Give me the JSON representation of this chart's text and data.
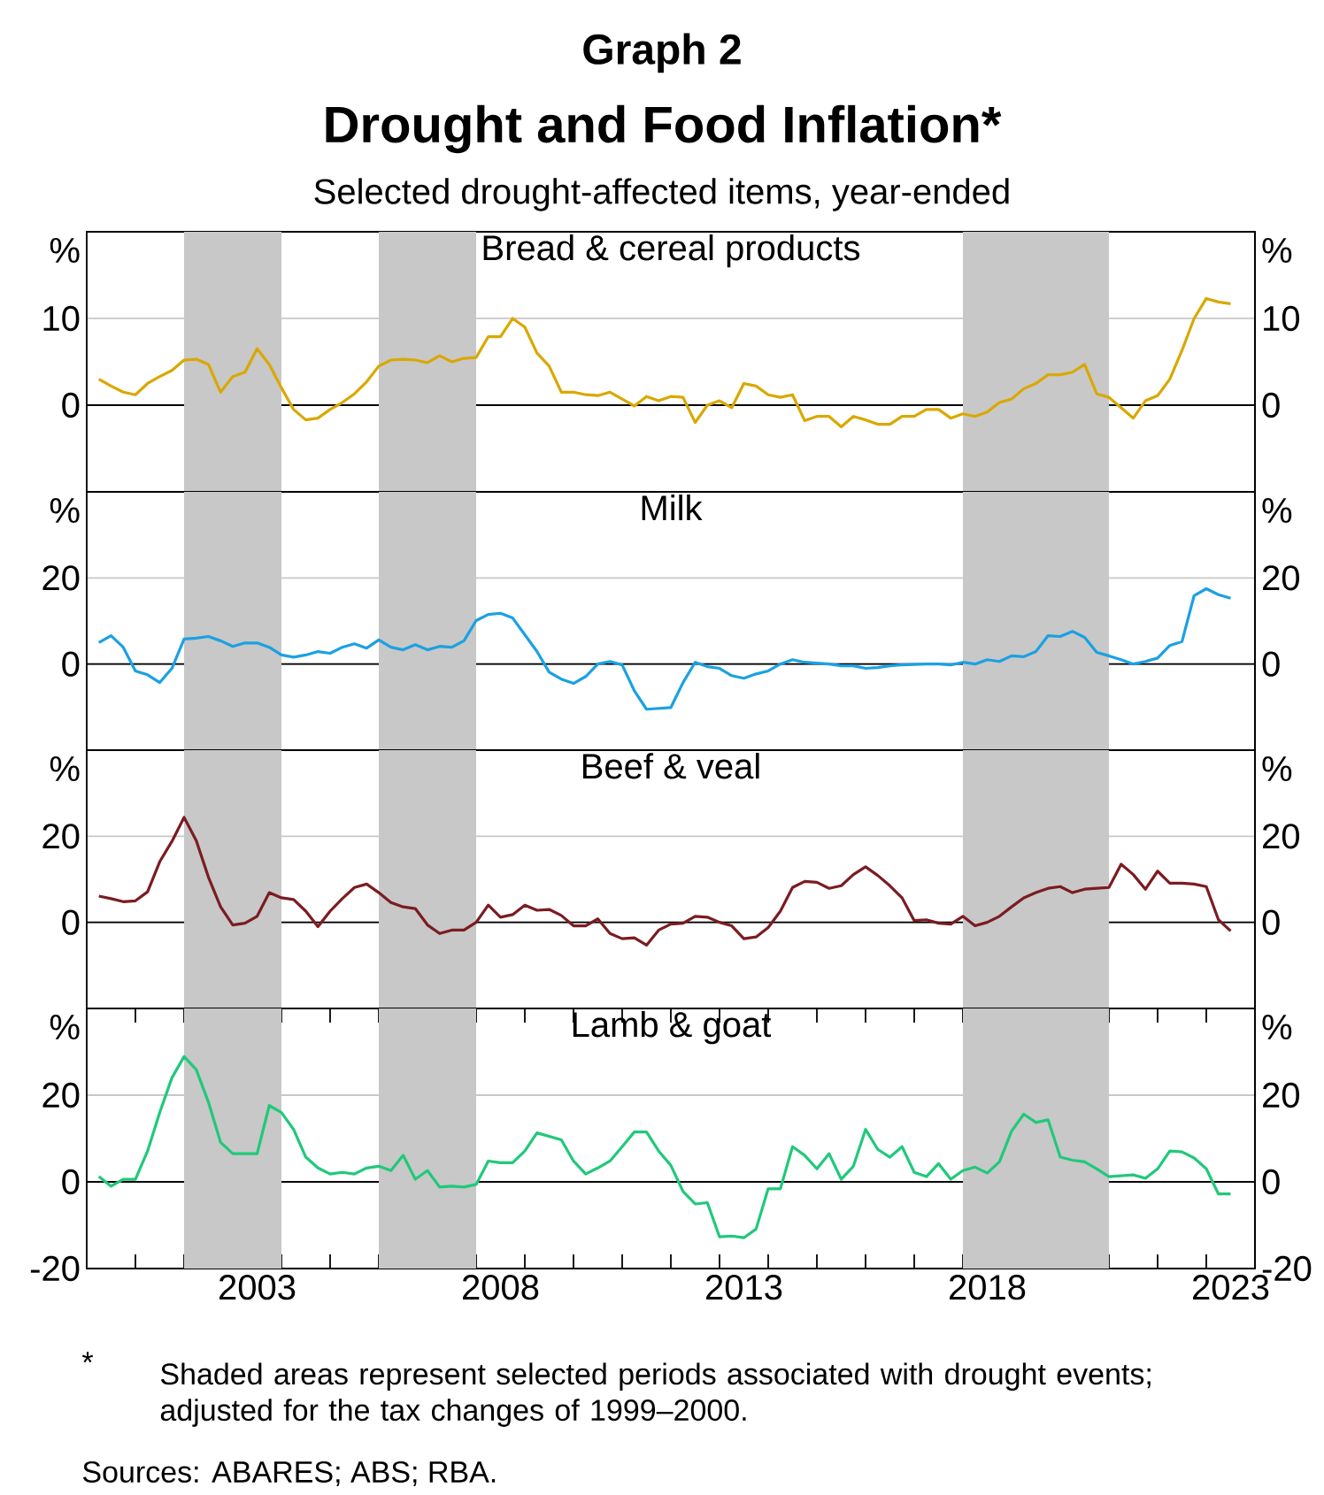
{
  "chart_data": [
    {
      "type": "other",
      "title": "Drought and Food Inflation*",
      "subtitle": "Selected drought-affected items, year-ended",
      "annotations": [
        "Graph 2",
        "*",
        "Shaded areas represent selected periods associated with drought events; adjusted for the tax changes of 1999–2000.",
        "Sources: ABARES; ABS; RBA."
      ]
    },
    {
      "type": "line",
      "title": "Bread & cereal products",
      "ylabel": "%",
      "y2label": "%",
      "xlim": [
        2000,
        2024
      ],
      "ylim": [
        -10,
        20
      ],
      "yticks": [
        0,
        10
      ],
      "y2lim": [
        -10,
        20
      ],
      "y2ticks": [
        0,
        10
      ],
      "grid": "y",
      "tick_labels": "y",
      "x": [
        2000.25,
        2000.5,
        2000.75,
        2001,
        2001.25,
        2001.5,
        2001.75,
        2002,
        2002.25,
        2002.5,
        2002.75,
        2003,
        2003.25,
        2003.5,
        2003.75,
        2004,
        2004.25,
        2004.5,
        2004.75,
        2005,
        2005.25,
        2005.5,
        2005.75,
        2006,
        2006.25,
        2006.5,
        2006.75,
        2007,
        2007.25,
        2007.5,
        2007.75,
        2008,
        2008.25,
        2008.5,
        2008.75,
        2009,
        2009.25,
        2009.5,
        2009.75,
        2010,
        2010.25,
        2010.5,
        2010.75,
        2011,
        2011.25,
        2011.5,
        2011.75,
        2012,
        2012.25,
        2012.5,
        2012.75,
        2013,
        2013.25,
        2013.5,
        2013.75,
        2014,
        2014.25,
        2014.5,
        2014.75,
        2015,
        2015.25,
        2015.5,
        2015.75,
        2016,
        2016.25,
        2016.5,
        2016.75,
        2017,
        2017.25,
        2017.5,
        2017.75,
        2018,
        2018.25,
        2018.5,
        2018.75,
        2019,
        2019.25,
        2019.5,
        2019.75,
        2020,
        2020.25,
        2020.5,
        2020.75,
        2021,
        2021.25,
        2021.5,
        2021.75,
        2022,
        2022.25,
        2022.5,
        2022.75,
        2023,
        2023.25,
        2023.5
      ],
      "bands": [
        {
          "axis": "x",
          "from": 2002,
          "to": 2004,
          "color": "#c8c8c8"
        },
        {
          "axis": "x",
          "from": 2006,
          "to": 2008,
          "color": "#c8c8c8"
        },
        {
          "axis": "x",
          "from": 2018,
          "to": 2021,
          "color": "#c8c8c8"
        }
      ],
      "ref_lines": [
        {
          "axis": "y",
          "value": 0,
          "color": "#000000"
        }
      ],
      "series": [
        {
          "color": "#d9a800",
          "values": [
            3.0,
            2.2,
            1.5,
            1.2,
            2.5,
            3.3,
            4.0,
            5.2,
            5.3,
            4.7,
            1.5,
            3.3,
            3.8,
            6.5,
            4.7,
            2.0,
            -0.5,
            -1.7,
            -1.5,
            -0.5,
            0.3,
            1.3,
            2.7,
            4.5,
            5.2,
            5.3,
            5.2,
            4.9,
            5.7,
            5.0,
            5.4,
            5.5,
            7.9,
            7.9,
            10.0,
            9.0,
            6.0,
            4.5,
            1.5,
            1.5,
            1.2,
            1.1,
            1.5,
            0.7,
            -0.1,
            1.0,
            0.5,
            1.0,
            0.9,
            -2.0,
            0.0,
            0.5,
            -0.3,
            2.5,
            2.2,
            1.2,
            0.9,
            1.2,
            -1.8,
            -1.3,
            -1.3,
            -2.5,
            -1.3,
            -1.7,
            -2.2,
            -2.2,
            -1.3,
            -1.3,
            -0.5,
            -0.5,
            -1.5,
            -1.0,
            -1.3,
            -0.8,
            0.3,
            0.7,
            1.9,
            2.5,
            3.5,
            3.5,
            3.8,
            4.7,
            1.3,
            0.9,
            -0.3,
            -1.5,
            0.5,
            1.1,
            3.0,
            6.3,
            10.0,
            12.3,
            11.9,
            11.7
          ]
        }
      ]
    },
    {
      "type": "line",
      "title": "Milk",
      "ylabel": "%",
      "y2label": "%",
      "xlim": [
        2000,
        2024
      ],
      "ylim": [
        -20,
        40
      ],
      "yticks": [
        0,
        20
      ],
      "y2lim": [
        -20,
        40
      ],
      "y2ticks": [
        0,
        20
      ],
      "grid": "y",
      "tick_labels": "y",
      "x": [
        2000.25,
        2000.5,
        2000.75,
        2001,
        2001.25,
        2001.5,
        2001.75,
        2002,
        2002.25,
        2002.5,
        2002.75,
        2003,
        2003.25,
        2003.5,
        2003.75,
        2004,
        2004.25,
        2004.5,
        2004.75,
        2005,
        2005.25,
        2005.5,
        2005.75,
        2006,
        2006.25,
        2006.5,
        2006.75,
        2007,
        2007.25,
        2007.5,
        2007.75,
        2008,
        2008.25,
        2008.5,
        2008.75,
        2009,
        2009.25,
        2009.5,
        2009.75,
        2010,
        2010.25,
        2010.5,
        2010.75,
        2011,
        2011.25,
        2011.5,
        2011.75,
        2012,
        2012.25,
        2012.5,
        2012.75,
        2013,
        2013.25,
        2013.5,
        2013.75,
        2014,
        2014.25,
        2014.5,
        2014.75,
        2015,
        2015.25,
        2015.5,
        2015.75,
        2016,
        2016.25,
        2016.5,
        2016.75,
        2017,
        2017.25,
        2017.5,
        2017.75,
        2018,
        2018.25,
        2018.5,
        2018.75,
        2019,
        2019.25,
        2019.5,
        2019.75,
        2020,
        2020.25,
        2020.5,
        2020.75,
        2021,
        2021.25,
        2021.5,
        2021.75,
        2022,
        2022.25,
        2022.5,
        2022.75,
        2023,
        2023.25,
        2023.5
      ],
      "bands": [
        {
          "axis": "x",
          "from": 2002,
          "to": 2004,
          "color": "#c8c8c8"
        },
        {
          "axis": "x",
          "from": 2006,
          "to": 2008,
          "color": "#c8c8c8"
        },
        {
          "axis": "x",
          "from": 2018,
          "to": 2021,
          "color": "#c8c8c8"
        }
      ],
      "ref_lines": [
        {
          "axis": "y",
          "value": 0,
          "color": "#000000"
        }
      ],
      "series": [
        {
          "color": "#1ba1e2",
          "values": [
            5.0,
            6.6,
            3.9,
            -1.6,
            -2.5,
            -4.3,
            -1.0,
            5.8,
            6.0,
            6.4,
            5.4,
            4.1,
            4.9,
            4.9,
            3.9,
            2.1,
            1.6,
            2.1,
            2.9,
            2.5,
            3.9,
            4.7,
            3.7,
            5.6,
            3.9,
            3.3,
            4.5,
            3.3,
            4.1,
            3.9,
            5.4,
            10.1,
            11.5,
            11.8,
            10.7,
            6.8,
            2.9,
            -1.9,
            -3.5,
            -4.5,
            -2.9,
            0.0,
            0.6,
            -0.2,
            -6.2,
            -10.5,
            -10.3,
            -10.1,
            -4.3,
            0.4,
            -0.6,
            -1.0,
            -2.7,
            -3.3,
            -2.3,
            -1.6,
            0.0,
            1.0,
            0.4,
            0.2,
            0.0,
            -0.4,
            -0.4,
            -1.0,
            -0.8,
            -0.4,
            -0.2,
            -0.1,
            0.0,
            0.0,
            -0.2,
            0.4,
            0.0,
            1.0,
            0.6,
            1.9,
            1.7,
            2.9,
            6.6,
            6.4,
            7.6,
            6.2,
            2.7,
            1.9,
            1.0,
            0.0,
            0.6,
            1.4,
            4.3,
            5.2,
            15.9,
            17.5,
            16.1,
            15.3
          ]
        }
      ]
    },
    {
      "type": "line",
      "title": "Beef & veal",
      "ylabel": "%",
      "y2label": "%",
      "xlim": [
        2000,
        2024
      ],
      "ylim": [
        -20,
        40
      ],
      "yticks": [
        0,
        20
      ],
      "y2lim": [
        -20,
        40
      ],
      "y2ticks": [
        0,
        20
      ],
      "grid": "y",
      "tick_labels": "y",
      "x": [
        2000.25,
        2000.5,
        2000.75,
        2001,
        2001.25,
        2001.5,
        2001.75,
        2002,
        2002.25,
        2002.5,
        2002.75,
        2003,
        2003.25,
        2003.5,
        2003.75,
        2004,
        2004.25,
        2004.5,
        2004.75,
        2005,
        2005.25,
        2005.5,
        2005.75,
        2006,
        2006.25,
        2006.5,
        2006.75,
        2007,
        2007.25,
        2007.5,
        2007.75,
        2008,
        2008.25,
        2008.5,
        2008.75,
        2009,
        2009.25,
        2009.5,
        2009.75,
        2010,
        2010.25,
        2010.5,
        2010.75,
        2011,
        2011.25,
        2011.5,
        2011.75,
        2012,
        2012.25,
        2012.5,
        2012.75,
        2013,
        2013.25,
        2013.5,
        2013.75,
        2014,
        2014.25,
        2014.5,
        2014.75,
        2015,
        2015.25,
        2015.5,
        2015.75,
        2016,
        2016.25,
        2016.5,
        2016.75,
        2017,
        2017.25,
        2017.5,
        2017.75,
        2018,
        2018.25,
        2018.5,
        2018.75,
        2019,
        2019.25,
        2019.5,
        2019.75,
        2020,
        2020.25,
        2020.5,
        2020.75,
        2021,
        2021.25,
        2021.5,
        2021.75,
        2022,
        2022.25,
        2022.5,
        2022.75,
        2023,
        2023.25,
        2023.5
      ],
      "bands": [
        {
          "axis": "x",
          "from": 2002,
          "to": 2004,
          "color": "#c8c8c8"
        },
        {
          "axis": "x",
          "from": 2006,
          "to": 2008,
          "color": "#c8c8c8"
        },
        {
          "axis": "x",
          "from": 2018,
          "to": 2021,
          "color": "#c8c8c8"
        }
      ],
      "ref_lines": [
        {
          "axis": "y",
          "value": 0,
          "color": "#000000"
        }
      ],
      "series": [
        {
          "color": "#7b1c22",
          "values": [
            6.1,
            5.5,
            4.8,
            5.0,
            7.1,
            14.1,
            18.8,
            24.4,
            19.0,
            10.5,
            3.6,
            -0.6,
            -0.2,
            1.4,
            6.9,
            5.7,
            5.3,
            2.6,
            -1.0,
            2.6,
            5.5,
            8.1,
            8.9,
            6.9,
            4.6,
            3.6,
            3.2,
            -0.6,
            -2.6,
            -1.8,
            -1.8,
            0.0,
            4.0,
            1.2,
            1.8,
            4.0,
            2.8,
            3.0,
            1.6,
            -0.8,
            -0.8,
            0.8,
            -2.6,
            -3.8,
            -3.6,
            -5.3,
            -1.8,
            -0.4,
            -0.2,
            1.4,
            1.2,
            0.0,
            -0.8,
            -3.8,
            -3.4,
            -1.2,
            2.6,
            8.1,
            9.5,
            9.3,
            7.9,
            8.5,
            11.1,
            12.9,
            10.9,
            8.5,
            5.7,
            0.4,
            0.6,
            -0.2,
            -0.4,
            1.4,
            -0.8,
            0.0,
            1.4,
            3.6,
            5.7,
            6.9,
            7.9,
            8.3,
            6.9,
            7.7,
            7.9,
            8.1,
            13.5,
            11.1,
            7.7,
            11.9,
            9.1,
            9.1,
            8.9,
            8.3,
            0.6,
            -2.0
          ]
        }
      ]
    },
    {
      "type": "line",
      "title": "Lamb & goat",
      "ylabel": "%",
      "y2label": "%",
      "xlim": [
        2000,
        2024
      ],
      "ylim": [
        -20,
        40
      ],
      "yticks": [
        -20,
        0,
        20
      ],
      "y2lim": [
        -20,
        40
      ],
      "y2ticks": [
        -20,
        0,
        20
      ],
      "grid": "y",
      "xticks": [
        {
          "value": 2001,
          "label": null
        },
        {
          "value": 2002,
          "label": null
        },
        {
          "value": 2003,
          "label": null
        },
        {
          "value": 2004,
          "label": null
        },
        {
          "value": 2005,
          "label": null
        },
        {
          "value": 2006,
          "label": null
        },
        {
          "value": 2007,
          "label": null
        },
        {
          "value": 2008,
          "label": null
        },
        {
          "value": 2009,
          "label": null
        },
        {
          "value": 2010,
          "label": null
        },
        {
          "value": 2011,
          "label": null
        },
        {
          "value": 2012,
          "label": null
        },
        {
          "value": 2013,
          "label": null
        },
        {
          "value": 2014,
          "label": null
        },
        {
          "value": 2015,
          "label": null
        },
        {
          "value": 2016,
          "label": null
        },
        {
          "value": 2017,
          "label": null
        },
        {
          "value": 2018,
          "label": null
        },
        {
          "value": 2019,
          "label": null
        },
        {
          "value": 2020,
          "label": null
        },
        {
          "value": 2021,
          "label": null
        },
        {
          "value": 2022,
          "label": null
        },
        {
          "value": 2023,
          "label": null
        },
        {
          "value": 2003.5,
          "label": "2003"
        },
        {
          "value": 2008.5,
          "label": "2008"
        },
        {
          "value": 2013.5,
          "label": "2013"
        },
        {
          "value": 2018.5,
          "label": "2018"
        },
        {
          "value": 2023.5,
          "label": "2023"
        }
      ],
      "x": [
        2000.25,
        2000.5,
        2000.75,
        2001,
        2001.25,
        2001.5,
        2001.75,
        2002,
        2002.25,
        2002.5,
        2002.75,
        2003,
        2003.25,
        2003.5,
        2003.75,
        2004,
        2004.25,
        2004.5,
        2004.75,
        2005,
        2005.25,
        2005.5,
        2005.75,
        2006,
        2006.25,
        2006.5,
        2006.75,
        2007,
        2007.25,
        2007.5,
        2007.75,
        2008,
        2008.25,
        2008.5,
        2008.75,
        2009,
        2009.25,
        2009.5,
        2009.75,
        2010,
        2010.25,
        2010.5,
        2010.75,
        2011,
        2011.25,
        2011.5,
        2011.75,
        2012,
        2012.25,
        2012.5,
        2012.75,
        2013,
        2013.25,
        2013.5,
        2013.75,
        2014,
        2014.25,
        2014.5,
        2014.75,
        2015,
        2015.25,
        2015.5,
        2015.75,
        2016,
        2016.25,
        2016.5,
        2016.75,
        2017,
        2017.25,
        2017.5,
        2017.75,
        2018,
        2018.25,
        2018.5,
        2018.75,
        2019,
        2019.25,
        2019.5,
        2019.75,
        2020,
        2020.25,
        2020.5,
        2020.75,
        2021,
        2021.25,
        2021.5,
        2021.75,
        2022,
        2022.25,
        2022.5,
        2022.75,
        2023,
        2023.25,
        2023.5
      ],
      "bands": [
        {
          "axis": "x",
          "from": 2002,
          "to": 2004,
          "color": "#c8c8c8"
        },
        {
          "axis": "x",
          "from": 2006,
          "to": 2008,
          "color": "#c8c8c8"
        },
        {
          "axis": "x",
          "from": 2018,
          "to": 2021,
          "color": "#c8c8c8"
        }
      ],
      "ref_lines": [
        {
          "axis": "y",
          "value": 0,
          "color": "#000000"
        }
      ],
      "series": [
        {
          "color": "#20c97a",
          "values": [
            1.2,
            -1.0,
            0.6,
            0.6,
            7.1,
            16.0,
            24.0,
            28.9,
            25.9,
            18.4,
            9.1,
            6.5,
            6.5,
            6.5,
            17.6,
            16.0,
            12.1,
            5.7,
            3.2,
            1.8,
            2.2,
            1.8,
            3.2,
            3.6,
            2.6,
            6.1,
            0.6,
            2.6,
            -1.2,
            -1.0,
            -1.2,
            -0.6,
            4.8,
            4.4,
            4.4,
            7.1,
            11.3,
            10.5,
            9.7,
            4.8,
            1.8,
            3.2,
            4.8,
            8.1,
            11.5,
            11.5,
            7.1,
            3.8,
            -2.2,
            -5.1,
            -4.8,
            -12.7,
            -12.5,
            -12.9,
            -10.9,
            -1.6,
            -1.6,
            8.1,
            6.1,
            3.0,
            6.5,
            0.6,
            3.6,
            12.1,
            7.5,
            5.7,
            8.1,
            2.2,
            1.2,
            4.2,
            0.6,
            2.6,
            3.4,
            2.0,
            4.6,
            11.7,
            15.6,
            13.7,
            14.3,
            5.7,
            5.0,
            4.6,
            3.0,
            1.2,
            1.4,
            1.6,
            0.8,
            3.0,
            7.1,
            6.9,
            5.5,
            3.0,
            -2.8,
            -2.8
          ]
        }
      ]
    }
  ]
}
